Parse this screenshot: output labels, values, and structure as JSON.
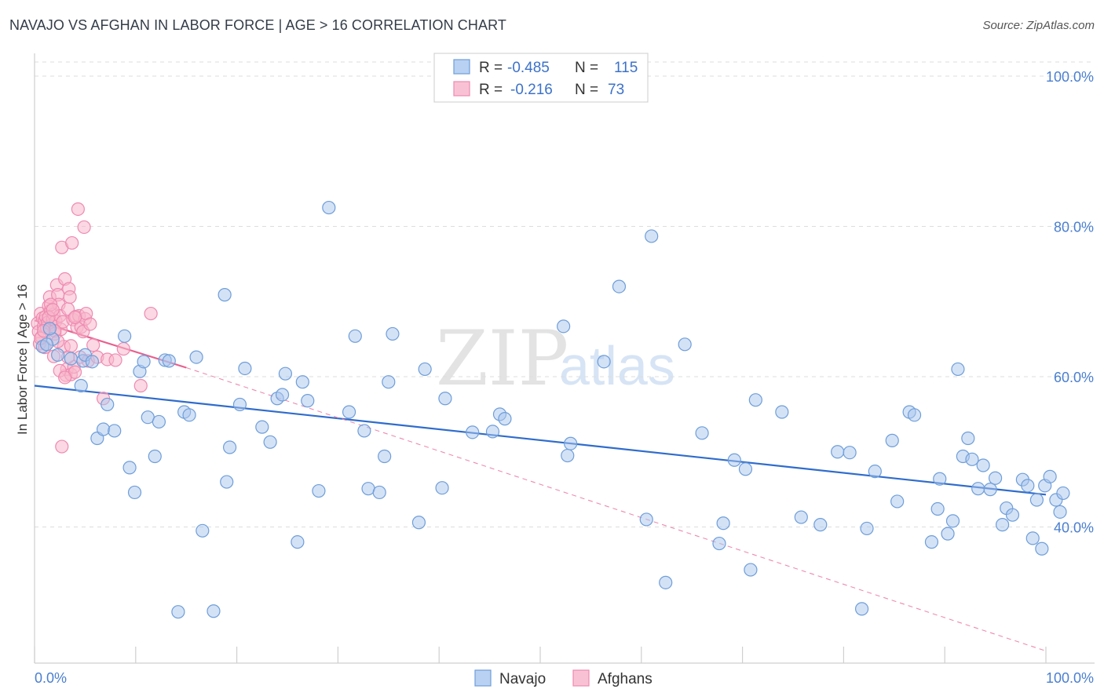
{
  "header": {
    "title": "NAVAJO VS AFGHAN IN LABOR FORCE | AGE > 16 CORRELATION CHART",
    "source": "Source: ZipAtlas.com"
  },
  "watermark": {
    "zip": "ZIP",
    "atlas": "atlas"
  },
  "legend": {
    "r_label": "R =",
    "n_label": "N =",
    "rows": [
      {
        "series": "Navajo",
        "r": "-0.485",
        "n": "115",
        "color": "#6fa0e0"
      },
      {
        "series": "Afghans",
        "r": "-0.216",
        "n": "73",
        "color": "#f08ab0"
      }
    ]
  },
  "colors": {
    "navajo_fill": "#a9c6ee",
    "navajo_stroke": "#6e9ed9",
    "navajo_line": "#2f6ccc",
    "afghan_fill": "#f7b8cc",
    "afghan_stroke": "#ee8ab0",
    "afghan_line": "#e8608e",
    "tick_label": "#4a7fd0",
    "grid": "#dddddd"
  },
  "chart_data": {
    "type": "scatter",
    "title": "NAVAJO VS AFGHAN IN LABOR FORCE | AGE > 16 CORRELATION CHART",
    "xlabel": "",
    "ylabel": "In Labor Force | Age > 16",
    "xlim": [
      0,
      100
    ],
    "ylim": [
      20,
      104
    ],
    "x_tick_labels": [
      {
        "value": 0,
        "label": "0.0%"
      },
      {
        "value": 100,
        "label": "100.0%"
      }
    ],
    "y_tick_labels": [
      {
        "value": 100,
        "label": "100.0%"
      },
      {
        "value": 80,
        "label": "80.0%"
      },
      {
        "value": 60,
        "label": "60.0%"
      },
      {
        "value": 40,
        "label": "40.0%"
      }
    ],
    "grid": true,
    "legend_position": "top-center",
    "series": [
      {
        "name": "Navajo",
        "trend": {
          "x": [
            0,
            100
          ],
          "y": [
            58.8,
            44.3
          ],
          "style": "solid"
        },
        "points": [
          [
            0.8,
            64.0
          ],
          [
            1.8,
            65.0
          ],
          [
            2.3,
            62.9
          ],
          [
            3.6,
            62.4
          ],
          [
            4.8,
            62.1
          ],
          [
            4.6,
            58.8
          ],
          [
            5.0,
            62.9
          ],
          [
            5.7,
            62.0
          ],
          [
            6.2,
            51.8
          ],
          [
            6.8,
            53.0
          ],
          [
            7.2,
            56.3
          ],
          [
            7.9,
            52.8
          ],
          [
            8.9,
            65.4
          ],
          [
            9.4,
            47.9
          ],
          [
            9.9,
            44.6
          ],
          [
            10.4,
            60.7
          ],
          [
            10.8,
            62.0
          ],
          [
            11.2,
            54.6
          ],
          [
            11.9,
            49.4
          ],
          [
            12.3,
            54.0
          ],
          [
            12.9,
            62.2
          ],
          [
            13.3,
            62.1
          ],
          [
            14.2,
            28.7
          ],
          [
            14.8,
            55.3
          ],
          [
            15.3,
            54.9
          ],
          [
            16.0,
            62.6
          ],
          [
            16.6,
            39.5
          ],
          [
            17.7,
            28.8
          ],
          [
            18.8,
            70.9
          ],
          [
            19.0,
            46.0
          ],
          [
            19.3,
            50.6
          ],
          [
            20.3,
            56.3
          ],
          [
            20.8,
            61.1
          ],
          [
            22.5,
            53.3
          ],
          [
            23.3,
            51.3
          ],
          [
            24.0,
            57.1
          ],
          [
            24.5,
            57.6
          ],
          [
            24.8,
            60.4
          ],
          [
            26.0,
            38.0
          ],
          [
            26.5,
            59.3
          ],
          [
            27.0,
            56.8
          ],
          [
            28.1,
            44.8
          ],
          [
            29.1,
            82.5
          ],
          [
            31.1,
            55.3
          ],
          [
            31.7,
            65.4
          ],
          [
            32.6,
            52.8
          ],
          [
            33.0,
            45.1
          ],
          [
            34.1,
            44.6
          ],
          [
            34.6,
            49.4
          ],
          [
            35.0,
            59.3
          ],
          [
            35.4,
            65.7
          ],
          [
            38.0,
            40.6
          ],
          [
            38.6,
            61.0
          ],
          [
            40.3,
            45.2
          ],
          [
            40.6,
            57.1
          ],
          [
            43.3,
            52.6
          ],
          [
            45.3,
            52.7
          ],
          [
            46.0,
            55.0
          ],
          [
            46.5,
            54.4
          ],
          [
            52.3,
            66.7
          ],
          [
            52.7,
            49.5
          ],
          [
            53.0,
            51.1
          ],
          [
            56.3,
            62.0
          ],
          [
            57.8,
            72.0
          ],
          [
            60.5,
            41.0
          ],
          [
            61.0,
            78.7
          ],
          [
            62.4,
            32.6
          ],
          [
            64.3,
            64.3
          ],
          [
            66.0,
            52.5
          ],
          [
            67.7,
            37.8
          ],
          [
            68.1,
            40.5
          ],
          [
            69.2,
            48.9
          ],
          [
            70.3,
            47.7
          ],
          [
            70.8,
            34.3
          ],
          [
            71.3,
            56.9
          ],
          [
            73.9,
            55.3
          ],
          [
            75.8,
            41.3
          ],
          [
            77.7,
            40.3
          ],
          [
            79.4,
            50.0
          ],
          [
            80.6,
            49.9
          ],
          [
            81.8,
            29.1
          ],
          [
            82.3,
            39.8
          ],
          [
            83.1,
            47.4
          ],
          [
            84.8,
            51.5
          ],
          [
            85.3,
            43.4
          ],
          [
            86.5,
            55.3
          ],
          [
            87.0,
            54.9
          ],
          [
            88.7,
            38.0
          ],
          [
            89.3,
            42.4
          ],
          [
            89.5,
            46.4
          ],
          [
            90.3,
            39.1
          ],
          [
            90.8,
            40.8
          ],
          [
            91.3,
            61.0
          ],
          [
            91.8,
            49.4
          ],
          [
            92.3,
            51.8
          ],
          [
            92.7,
            49.0
          ],
          [
            93.3,
            45.1
          ],
          [
            93.8,
            48.2
          ],
          [
            94.5,
            45.0
          ],
          [
            95.0,
            46.5
          ],
          [
            95.7,
            40.3
          ],
          [
            96.1,
            42.5
          ],
          [
            96.7,
            41.6
          ],
          [
            97.7,
            46.3
          ],
          [
            98.2,
            45.5
          ],
          [
            98.7,
            38.5
          ],
          [
            99.1,
            43.6
          ],
          [
            99.6,
            37.1
          ],
          [
            99.9,
            45.5
          ],
          [
            100.4,
            46.7
          ],
          [
            101.0,
            43.6
          ],
          [
            101.4,
            42.0
          ],
          [
            101.7,
            44.5
          ],
          [
            1.2,
            64.3
          ],
          [
            1.5,
            66.4
          ]
        ]
      },
      {
        "name": "Afghans",
        "trend": {
          "x": [
            0,
            15
          ],
          "y": [
            67.5,
            61.2
          ],
          "style": "solid",
          "extended": {
            "x": [
              15,
              100
            ],
            "y": [
              61.2,
              23.5
            ],
            "style": "dashed"
          }
        },
        "points": [
          [
            0.3,
            67.1
          ],
          [
            0.4,
            66.0
          ],
          [
            0.5,
            64.4
          ],
          [
            0.6,
            68.4
          ],
          [
            0.7,
            65.3
          ],
          [
            0.8,
            67.8
          ],
          [
            0.9,
            66.7
          ],
          [
            1.0,
            67.5
          ],
          [
            1.1,
            68.0
          ],
          [
            1.2,
            66.5
          ],
          [
            1.3,
            67.2
          ],
          [
            1.4,
            69.4
          ],
          [
            1.5,
            70.6
          ],
          [
            1.6,
            68.8
          ],
          [
            1.7,
            66.9
          ],
          [
            1.8,
            67.6
          ],
          [
            1.9,
            68.3
          ],
          [
            2.0,
            65.7
          ],
          [
            2.1,
            67.4
          ],
          [
            2.2,
            72.2
          ],
          [
            2.3,
            70.9
          ],
          [
            2.4,
            69.6
          ],
          [
            2.5,
            68.1
          ],
          [
            2.6,
            66.3
          ],
          [
            2.7,
            77.2
          ],
          [
            2.8,
            67.3
          ],
          [
            2.9,
            64.0
          ],
          [
            3.0,
            73.0
          ],
          [
            3.1,
            60.2
          ],
          [
            3.2,
            61.0
          ],
          [
            3.3,
            69.0
          ],
          [
            3.4,
            71.7
          ],
          [
            3.5,
            70.6
          ],
          [
            3.6,
            60.3
          ],
          [
            3.7,
            77.8
          ],
          [
            3.8,
            67.6
          ],
          [
            3.9,
            61.3
          ],
          [
            4.0,
            60.6
          ],
          [
            4.1,
            68.0
          ],
          [
            4.2,
            66.6
          ],
          [
            4.3,
            82.3
          ],
          [
            4.4,
            68.1
          ],
          [
            4.5,
            62.6
          ],
          [
            4.6,
            66.6
          ],
          [
            4.8,
            66.0
          ],
          [
            4.9,
            79.9
          ],
          [
            5.0,
            67.7
          ],
          [
            5.1,
            68.4
          ],
          [
            5.3,
            62.1
          ],
          [
            5.5,
            67.0
          ],
          [
            5.8,
            64.2
          ],
          [
            6.2,
            62.6
          ],
          [
            6.8,
            57.1
          ],
          [
            7.2,
            62.3
          ],
          [
            8.0,
            62.2
          ],
          [
            8.8,
            63.7
          ],
          [
            10.5,
            58.8
          ],
          [
            11.5,
            68.4
          ],
          [
            2.7,
            50.7
          ],
          [
            1.9,
            62.7
          ],
          [
            1.0,
            63.9
          ],
          [
            0.6,
            65.1
          ],
          [
            1.4,
            67.9
          ],
          [
            2.0,
            66.1
          ],
          [
            2.5,
            60.8
          ],
          [
            3.0,
            59.9
          ],
          [
            3.3,
            62.6
          ],
          [
            3.6,
            64.1
          ],
          [
            4.0,
            67.9
          ],
          [
            1.6,
            69.6
          ],
          [
            2.3,
            64.7
          ],
          [
            0.9,
            66.1
          ],
          [
            1.8,
            68.9
          ]
        ]
      }
    ]
  }
}
